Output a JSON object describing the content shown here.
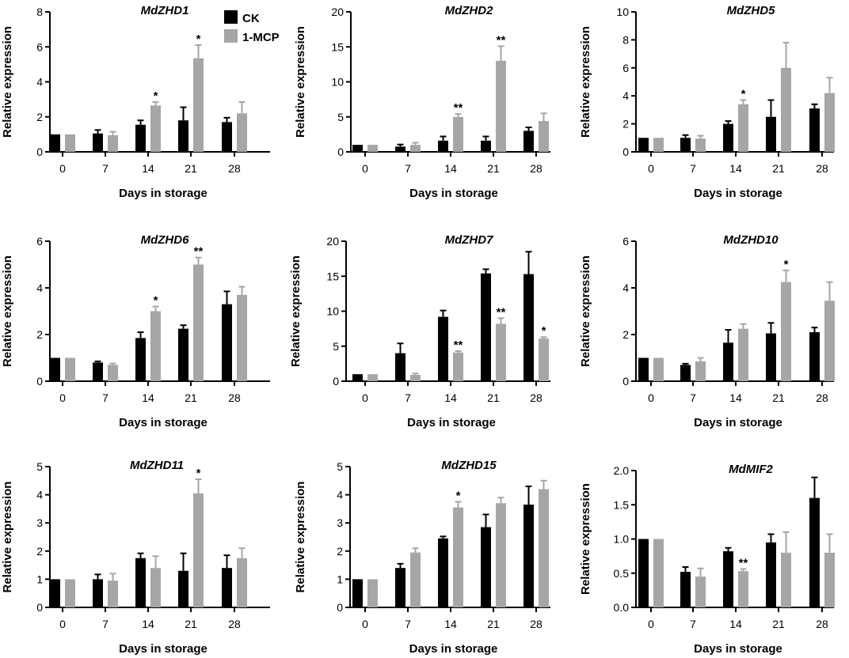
{
  "series_names": [
    "CK",
    "1-MCP"
  ],
  "colors": {
    "CK": "#000000",
    "1-MCP": "#a6a6a6"
  },
  "chart_data": [
    {
      "type": "bar",
      "title": "MdZHD1",
      "xlabel": "Days in storage",
      "ylabel": "Relative expression",
      "categories": [
        "0",
        "7",
        "14",
        "21",
        "28"
      ],
      "ylim": [
        0,
        8
      ],
      "yticks": [
        "0",
        "2",
        "4",
        "6",
        "8"
      ],
      "series": [
        {
          "name": "CK",
          "values": [
            1.0,
            1.05,
            1.55,
            1.8,
            1.7
          ],
          "errors": [
            0,
            0.2,
            0.25,
            0.75,
            0.25
          ]
        },
        {
          "name": "1-MCP",
          "values": [
            1.0,
            0.95,
            2.65,
            5.35,
            2.2
          ],
          "errors": [
            0,
            0.2,
            0.2,
            0.75,
            0.65
          ]
        }
      ],
      "annotations": [
        {
          "category": "14",
          "text": "*"
        },
        {
          "category": "21",
          "text": "*"
        }
      ]
    },
    {
      "type": "bar",
      "title": "MdZHD2",
      "xlabel": "Days in storage",
      "ylabel": "Relative expression",
      "categories": [
        "0",
        "7",
        "14",
        "21",
        "28"
      ],
      "ylim": [
        0,
        20
      ],
      "yticks": [
        "0",
        "5",
        "10",
        "15",
        "20"
      ],
      "series": [
        {
          "name": "CK",
          "values": [
            1.0,
            0.75,
            1.6,
            1.6,
            3.0
          ],
          "errors": [
            0,
            0.3,
            0.6,
            0.6,
            0.5
          ]
        },
        {
          "name": "1-MCP",
          "values": [
            1.0,
            1.0,
            5.0,
            13.0,
            4.4
          ],
          "errors": [
            0,
            0.3,
            0.4,
            2.1,
            1.1
          ]
        }
      ],
      "annotations": [
        {
          "category": "14",
          "text": "**"
        },
        {
          "category": "21",
          "text": "**"
        }
      ]
    },
    {
      "type": "bar",
      "title": "MdZHD5",
      "xlabel": "Days in storage",
      "ylabel": "Relative expression",
      "categories": [
        "0",
        "7",
        "14",
        "21",
        "28"
      ],
      "ylim": [
        0,
        10
      ],
      "yticks": [
        "0",
        "2",
        "4",
        "6",
        "8",
        "10"
      ],
      "series": [
        {
          "name": "CK",
          "values": [
            1.0,
            1.0,
            2.0,
            2.5,
            3.1
          ],
          "errors": [
            0,
            0.2,
            0.2,
            1.2,
            0.3
          ]
        },
        {
          "name": "1-MCP",
          "values": [
            1.0,
            0.95,
            3.4,
            6.0,
            4.2
          ],
          "errors": [
            0,
            0.2,
            0.3,
            1.8,
            1.1
          ]
        }
      ],
      "annotations": [
        {
          "category": "14",
          "text": "*"
        }
      ]
    },
    {
      "type": "bar",
      "title": "MdZHD6",
      "xlabel": "Days in storage",
      "ylabel": "Relative expression",
      "categories": [
        "0",
        "7",
        "14",
        "21",
        "28"
      ],
      "ylim": [
        0,
        6
      ],
      "yticks": [
        "0",
        "2",
        "4",
        "6"
      ],
      "series": [
        {
          "name": "CK",
          "values": [
            1.0,
            0.8,
            1.85,
            2.25,
            3.3
          ],
          "errors": [
            0,
            0.05,
            0.25,
            0.15,
            0.55
          ]
        },
        {
          "name": "1-MCP",
          "values": [
            1.0,
            0.7,
            3.0,
            5.0,
            3.7
          ],
          "errors": [
            0,
            0.06,
            0.2,
            0.3,
            0.35
          ]
        }
      ],
      "annotations": [
        {
          "category": "14",
          "text": "*"
        },
        {
          "category": "21",
          "text": "**"
        }
      ]
    },
    {
      "type": "bar",
      "title": "MdZHD7",
      "xlabel": "Days in storage",
      "ylabel": "Relative expression",
      "categories": [
        "0",
        "7",
        "14",
        "21",
        "28"
      ],
      "ylim": [
        0,
        20
      ],
      "yticks": [
        "0",
        "5",
        "10",
        "15",
        "20"
      ],
      "series": [
        {
          "name": "CK",
          "values": [
            1.0,
            4.0,
            9.2,
            15.4,
            15.3
          ],
          "errors": [
            0,
            1.4,
            0.9,
            0.6,
            3.2
          ]
        },
        {
          "name": "1-MCP",
          "values": [
            1.0,
            0.9,
            4.1,
            8.2,
            6.1
          ],
          "errors": [
            0,
            0.2,
            0.2,
            0.8,
            0.2
          ]
        }
      ],
      "annotations": [
        {
          "category": "14",
          "text": "**"
        },
        {
          "category": "21",
          "text": "**"
        },
        {
          "category": "28",
          "text": "*"
        }
      ]
    },
    {
      "type": "bar",
      "title": "MdZHD10",
      "xlabel": "Days in storage",
      "ylabel": "Relative expression",
      "categories": [
        "0",
        "7",
        "14",
        "21",
        "28"
      ],
      "ylim": [
        0,
        6
      ],
      "yticks": [
        "0",
        "2",
        "4",
        "6"
      ],
      "series": [
        {
          "name": "CK",
          "values": [
            1.0,
            0.7,
            1.65,
            2.05,
            2.1
          ],
          "errors": [
            0,
            0.05,
            0.55,
            0.45,
            0.2
          ]
        },
        {
          "name": "1-MCP",
          "values": [
            1.0,
            0.85,
            2.25,
            4.25,
            3.45
          ],
          "errors": [
            0,
            0.15,
            0.2,
            0.5,
            0.8
          ]
        }
      ],
      "annotations": [
        {
          "category": "21",
          "text": "*"
        }
      ]
    },
    {
      "type": "bar",
      "title": "MdZHD11",
      "xlabel": "Days in storage",
      "ylabel": "Relative expression",
      "categories": [
        "0",
        "7",
        "14",
        "21",
        "28"
      ],
      "ylim": [
        0,
        5
      ],
      "yticks": [
        "0",
        "1",
        "2",
        "3",
        "4",
        "5"
      ],
      "series": [
        {
          "name": "CK",
          "values": [
            1.0,
            1.0,
            1.75,
            1.3,
            1.4
          ],
          "errors": [
            0,
            0.17,
            0.17,
            0.62,
            0.45
          ]
        },
        {
          "name": "1-MCP",
          "values": [
            1.0,
            0.95,
            1.4,
            4.05,
            1.75
          ],
          "errors": [
            0,
            0.25,
            0.42,
            0.5,
            0.35
          ]
        }
      ],
      "annotations": [
        {
          "category": "21",
          "text": "*"
        }
      ]
    },
    {
      "type": "bar",
      "title": "MdZHD15",
      "xlabel": "Days in storage",
      "ylabel": "Relative expression",
      "categories": [
        "0",
        "7",
        "14",
        "21",
        "28"
      ],
      "ylim": [
        0,
        5
      ],
      "yticks": [
        "0",
        "1",
        "2",
        "3",
        "4",
        "5"
      ],
      "series": [
        {
          "name": "CK",
          "values": [
            1.0,
            1.4,
            2.45,
            2.85,
            3.65
          ],
          "errors": [
            0,
            0.15,
            0.07,
            0.45,
            0.65
          ]
        },
        {
          "name": "1-MCP",
          "values": [
            1.0,
            1.95,
            3.55,
            3.7,
            4.2
          ],
          "errors": [
            0,
            0.15,
            0.2,
            0.2,
            0.3
          ]
        }
      ],
      "annotations": [
        {
          "category": "14",
          "text": "*"
        }
      ]
    },
    {
      "type": "bar",
      "title": "MdMIF2",
      "xlabel": "Days in storage",
      "ylabel": "Relative expression",
      "categories": [
        "0",
        "7",
        "14",
        "21",
        "28"
      ],
      "ylim": [
        0,
        2.0
      ],
      "yticks": [
        "0.0",
        "0.5",
        "1.0",
        "1.5",
        "2.0"
      ],
      "series": [
        {
          "name": "CK",
          "values": [
            1.0,
            0.52,
            0.82,
            0.95,
            1.6
          ],
          "errors": [
            0,
            0.07,
            0.05,
            0.12,
            0.3
          ]
        },
        {
          "name": "1-MCP",
          "values": [
            1.0,
            0.45,
            0.53,
            0.8,
            0.8
          ],
          "errors": [
            0,
            0.12,
            0.03,
            0.3,
            0.27
          ]
        }
      ],
      "annotations": [
        {
          "category": "14",
          "text": "**"
        }
      ]
    }
  ]
}
